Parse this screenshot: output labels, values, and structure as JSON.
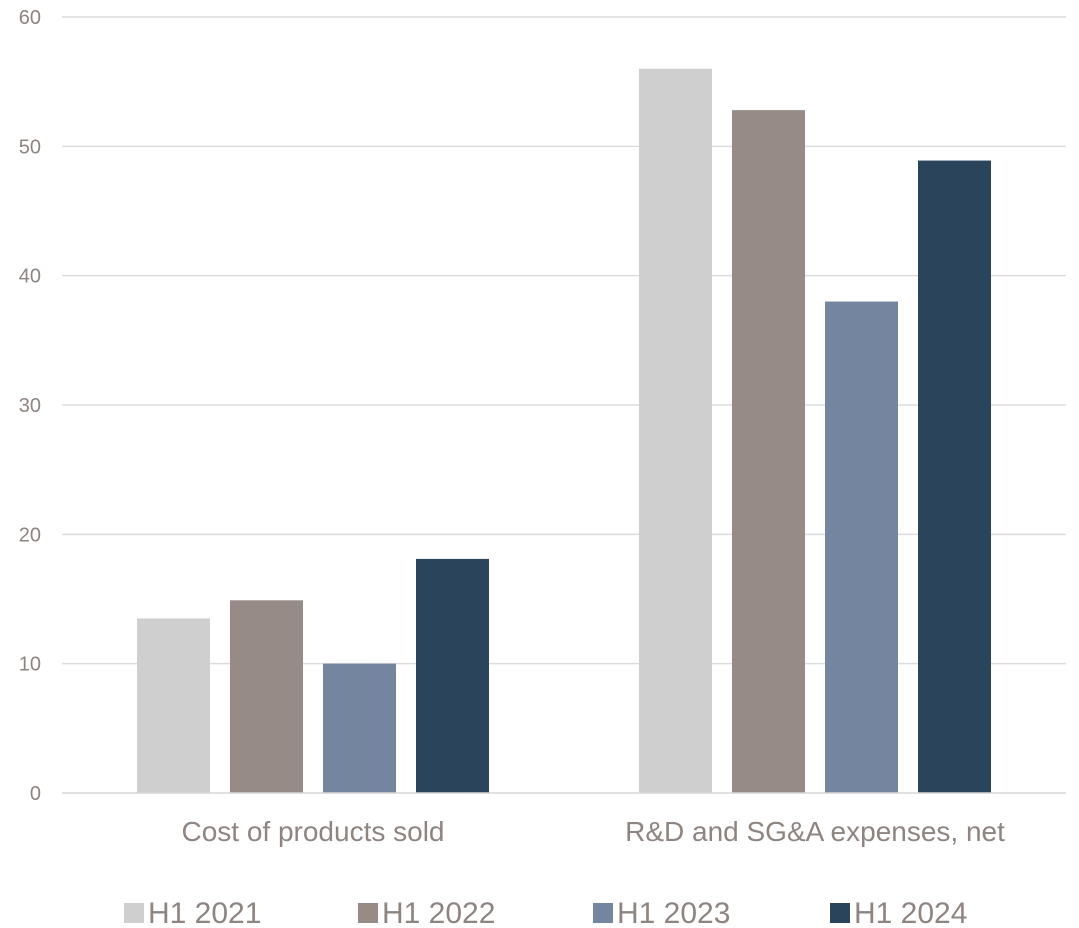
{
  "chart_data": {
    "type": "bar",
    "title": "",
    "xlabel": "",
    "ylabel": "",
    "categories": [
      "Cost of products sold",
      "R&D and SG&A expenses, net"
    ],
    "series": [
      {
        "name": "H1 2021",
        "color": "#d0cfd0",
        "values": [
          13.5,
          56.0
        ]
      },
      {
        "name": "H1 2022",
        "color": "#968b86",
        "values": [
          14.9,
          52.8
        ]
      },
      {
        "name": "H1 2023",
        "color": "#74859f",
        "values": [
          10.0,
          38.0
        ]
      },
      {
        "name": "H1 2024",
        "color": "#2a445c",
        "values": [
          18.1,
          48.9
        ]
      }
    ],
    "ylim": [
      0,
      60
    ],
    "yticks": [
      "0",
      "10",
      "20",
      "30",
      "40",
      "50",
      "60"
    ],
    "grid": true,
    "legend": "bottom"
  }
}
